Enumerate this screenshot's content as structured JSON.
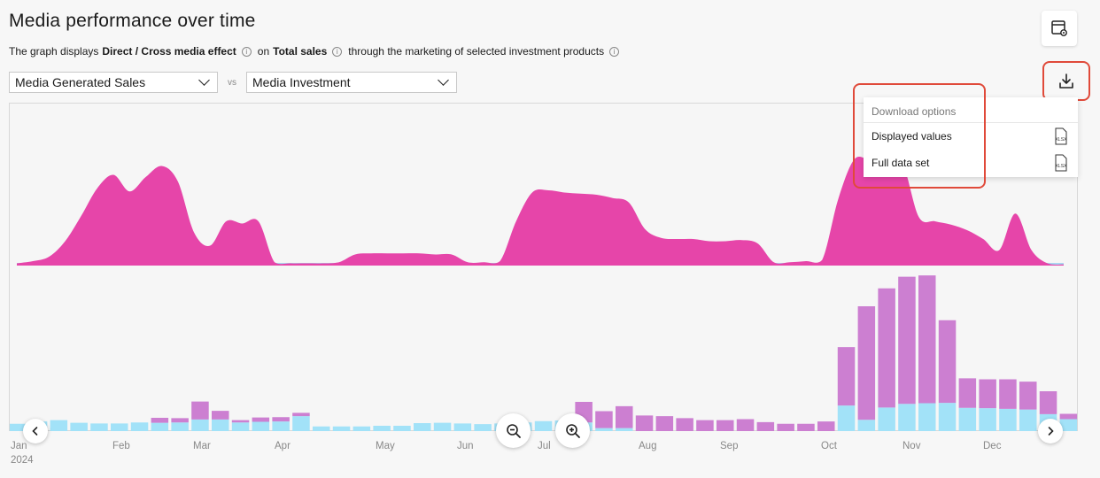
{
  "title": "Media performance over time",
  "subtitle": {
    "prefix": "The graph displays",
    "effect": "Direct / Cross media effect",
    "on": "on",
    "metric": "Total sales",
    "suffix": "through the marketing of selected investment products",
    "info_glyph": "i"
  },
  "selects": {
    "left": "Media Generated Sales",
    "vs": "vs",
    "right": "Media Investment"
  },
  "toolbar": {
    "settings_icon": "table-settings-icon",
    "download_icon": "download-icon"
  },
  "download_menu": {
    "header": "Download options",
    "items": [
      {
        "label": "Displayed values",
        "format": "XLSX"
      },
      {
        "label": "Full data set",
        "format": "XLSX"
      }
    ]
  },
  "x_axis": {
    "months": [
      "Jan",
      "Feb",
      "Mar",
      "Apr",
      "May",
      "Jun",
      "Jul",
      "Aug",
      "Sep",
      "Oct",
      "Nov",
      "Dec"
    ],
    "year": "2024"
  },
  "colors": {
    "area": "#e645a9",
    "area_base": "#a8d8f2",
    "bar_purple": "#cc7fd1",
    "bar_blue": "#a2e2f8",
    "highlight": "#e04a3a"
  },
  "chart_data": {
    "type": "area",
    "note_units": "relative (no y-axis printed)",
    "sales_area_weekly": [
      2,
      4,
      8,
      22,
      45,
      70,
      82,
      67,
      80,
      90,
      76,
      30,
      18,
      40,
      38,
      40,
      3,
      2,
      2,
      2,
      3,
      10,
      11,
      11,
      11,
      11,
      10,
      10,
      3,
      3,
      4,
      40,
      66,
      68,
      66,
      65,
      64,
      61,
      57,
      33,
      25,
      24,
      24,
      22,
      22,
      23,
      20,
      3,
      3,
      4,
      5,
      60,
      96,
      95,
      95,
      92,
      44,
      40,
      37,
      32,
      24,
      14,
      47,
      14,
      2,
      1
    ],
    "investment_bars_weekly": {
      "purple": [
        0,
        0,
        0,
        0,
        0,
        0,
        0,
        1.5,
        1.3,
        5.4,
        2.6,
        0.7,
        1.3,
        1.3,
        1,
        0,
        0,
        0,
        0,
        0,
        0,
        0,
        0,
        0,
        0,
        0,
        0,
        0,
        6.2,
        5.1,
        6.6,
        4.7,
        4.5,
        3.9,
        3.3,
        3.3,
        3.6,
        2.7,
        2.2,
        2.2,
        2.9,
        17.6,
        34.2,
        35.9,
        38.3,
        38.5,
        24.9,
        8.9,
        8.7,
        8.9,
        8.4,
        6.9,
        1.6
      ],
      "blue": [
        2.2,
        2.9,
        3.3,
        2.5,
        2.3,
        2.3,
        2.6,
        2.5,
        2.6,
        3.5,
        3.5,
        2.6,
        2.8,
        2.9,
        4.5,
        1.4,
        1.4,
        1.4,
        1.6,
        1.6,
        2.4,
        2.5,
        2.3,
        2.1,
        2.3,
        2.6,
        3.0,
        3.2,
        2.6,
        0.9,
        0.9,
        0,
        0,
        0,
        0,
        0,
        0,
        0,
        0,
        0,
        0,
        7.7,
        3.4,
        7.1,
        8.2,
        8.4,
        8.5,
        7.0,
        6.9,
        6.7,
        6.5,
        5.1,
        3.6
      ]
    }
  }
}
